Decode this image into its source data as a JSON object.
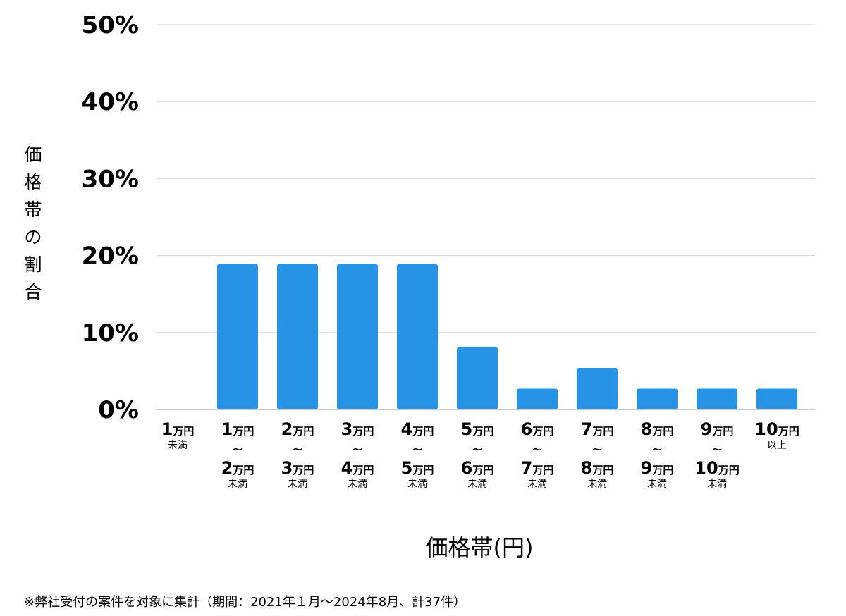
{
  "chart_data": {
    "type": "bar",
    "title": "",
    "ylabel": "価格帯の割合",
    "xlabel": "価格帯(円)",
    "ylim": [
      0,
      50
    ],
    "yticks": [
      0,
      10,
      20,
      30,
      40,
      50
    ],
    "ytick_labels": [
      "0%",
      "10%",
      "20%",
      "30%",
      "40%",
      "50%"
    ],
    "grid": true,
    "bar_color": "#2793e6",
    "categories": [
      {
        "lines": [
          "1万円"
        ],
        "sub": "未満"
      },
      {
        "lines": [
          "1万円",
          "2万円"
        ],
        "sub": "未満"
      },
      {
        "lines": [
          "2万円",
          "3万円"
        ],
        "sub": "未満"
      },
      {
        "lines": [
          "3万円",
          "4万円"
        ],
        "sub": "未満"
      },
      {
        "lines": [
          "4万円",
          "5万円"
        ],
        "sub": "未満"
      },
      {
        "lines": [
          "5万円",
          "6万円"
        ],
        "sub": "未満"
      },
      {
        "lines": [
          "6万円",
          "7万円"
        ],
        "sub": "未満"
      },
      {
        "lines": [
          "7万円",
          "8万円"
        ],
        "sub": "未満"
      },
      {
        "lines": [
          "8万円",
          "9万円"
        ],
        "sub": "未満"
      },
      {
        "lines": [
          "9万円",
          "10万円"
        ],
        "sub": "未満"
      },
      {
        "lines": [
          "10万円"
        ],
        "sub": "以上"
      }
    ],
    "values": [
      0,
      18.9,
      18.9,
      18.9,
      18.9,
      8.1,
      2.7,
      5.4,
      2.7,
      2.7,
      2.7
    ],
    "range_symbol": "~"
  },
  "footnote": "※弊社受付の案件を対象に集計（期間：2021年１月～2024年8月、計37件）"
}
